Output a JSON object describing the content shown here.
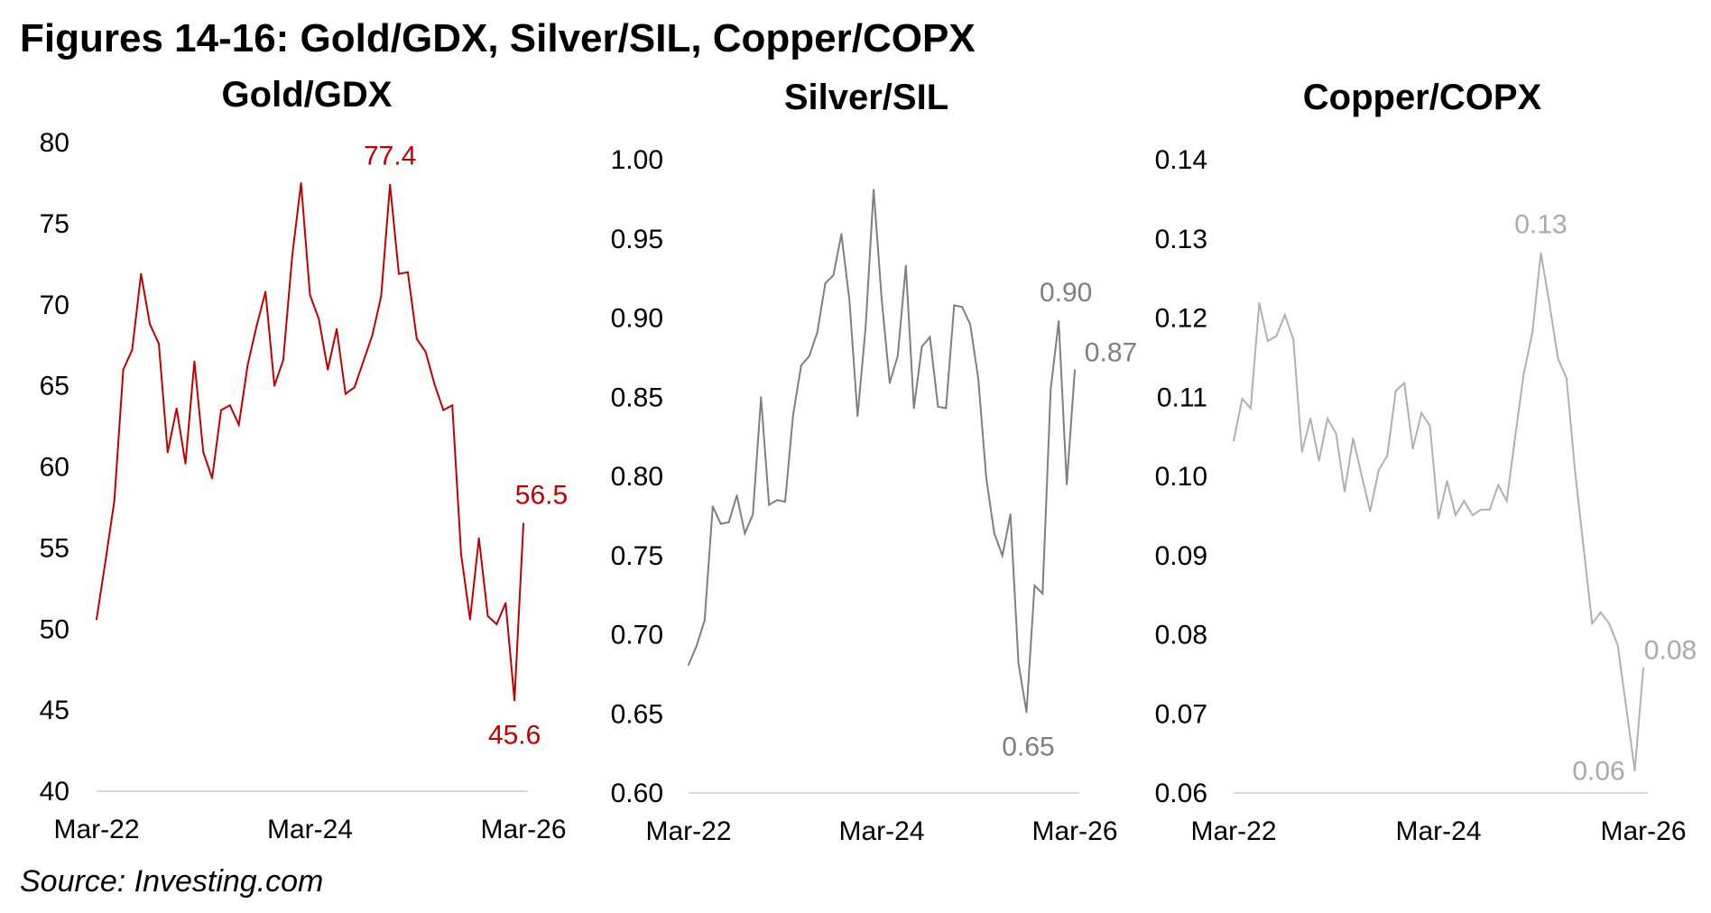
{
  "title": "Figures 14-16: Gold/GDX, Silver/SIL, Copper/COPX",
  "source": "Source: Investing.com",
  "chart_data": [
    {
      "type": "line",
      "title": "Gold/GDX",
      "color": "#c00000",
      "x_tick_labels": [
        "Mar-22",
        "Mar-24",
        "Mar-26"
      ],
      "x_range": [
        "Mar-22",
        "Mar-26"
      ],
      "frequency": "monthly",
      "y_ticks": [
        "40",
        "45",
        "50",
        "55",
        "60",
        "65",
        "70",
        "75",
        "80"
      ],
      "ylim": [
        40,
        80
      ],
      "grid": false,
      "values": [
        50.6,
        54.2,
        57.9,
        66.0,
        67.2,
        71.9,
        68.8,
        67.6,
        60.9,
        63.6,
        60.2,
        66.5,
        60.9,
        59.3,
        63.5,
        63.8,
        62.6,
        66.3,
        68.7,
        70.8,
        65.0,
        66.6,
        73.0,
        77.5,
        70.6,
        69.1,
        66.0,
        68.5,
        64.5,
        64.9,
        66.5,
        68.1,
        70.5,
        77.4,
        71.9,
        72.0,
        67.9,
        67.1,
        65.1,
        63.5,
        63.8,
        54.6,
        50.6,
        55.6,
        50.8,
        50.3,
        51.6,
        45.6,
        56.5
      ],
      "annotations": [
        "77.4",
        "56.5",
        "45.6"
      ]
    },
    {
      "type": "line",
      "title": "Silver/SIL",
      "color": "#7f7f7f",
      "x_tick_labels": [
        "Mar-22",
        "Mar-24",
        "Mar-26"
      ],
      "x_range": [
        "Mar-22",
        "Mar-26"
      ],
      "frequency": "monthly",
      "y_ticks": [
        "0.60",
        "0.65",
        "0.70",
        "0.75",
        "0.80",
        "0.85",
        "0.90",
        "0.95",
        "1.00"
      ],
      "ylim": [
        0.6,
        1.0
      ],
      "grid": false,
      "values": [
        0.681,
        0.693,
        0.709,
        0.781,
        0.77,
        0.771,
        0.788,
        0.764,
        0.776,
        0.85,
        0.782,
        0.785,
        0.784,
        0.839,
        0.87,
        0.876,
        0.891,
        0.922,
        0.927,
        0.953,
        0.911,
        0.838,
        0.894,
        0.981,
        0.912,
        0.859,
        0.876,
        0.933,
        0.843,
        0.882,
        0.888,
        0.844,
        0.843,
        0.908,
        0.907,
        0.896,
        0.862,
        0.799,
        0.764,
        0.75,
        0.776,
        0.682,
        0.651,
        0.731,
        0.726,
        0.855,
        0.898,
        0.795,
        0.867
      ],
      "annotations": [
        "0.90",
        "0.87",
        "0.65"
      ]
    },
    {
      "type": "line",
      "title": "Copper/COPX",
      "color": "#b0b0b0",
      "x_tick_labels": [
        "Mar-22",
        "Mar-24",
        "Mar-26"
      ],
      "x_range": [
        "Mar-22",
        "Mar-26"
      ],
      "frequency": "monthly",
      "y_ticks": [
        "0.06",
        "0.07",
        "0.08",
        "0.09",
        "0.10",
        "0.11",
        "0.12",
        "0.13",
        "0.14"
      ],
      "ylim": [
        0.06,
        0.14
      ],
      "grid": false,
      "values": [
        0.1045,
        0.1098,
        0.1086,
        0.1219,
        0.1171,
        0.1177,
        0.1204,
        0.1173,
        0.1031,
        0.1073,
        0.102,
        0.1073,
        0.1054,
        0.0981,
        0.1048,
        0.1001,
        0.0956,
        0.1008,
        0.1026,
        0.1108,
        0.1118,
        0.1035,
        0.108,
        0.1064,
        0.0947,
        0.0994,
        0.0951,
        0.0969,
        0.0951,
        0.0958,
        0.0958,
        0.0989,
        0.0969,
        0.1051,
        0.113,
        0.1181,
        0.1282,
        0.1218,
        0.1149,
        0.1124,
        0.1007,
        0.091,
        0.0814,
        0.0828,
        0.0814,
        0.0787,
        0.0708,
        0.0628,
        0.0758
      ],
      "annotations": [
        "0.13",
        "0.08",
        "0.06"
      ]
    }
  ]
}
